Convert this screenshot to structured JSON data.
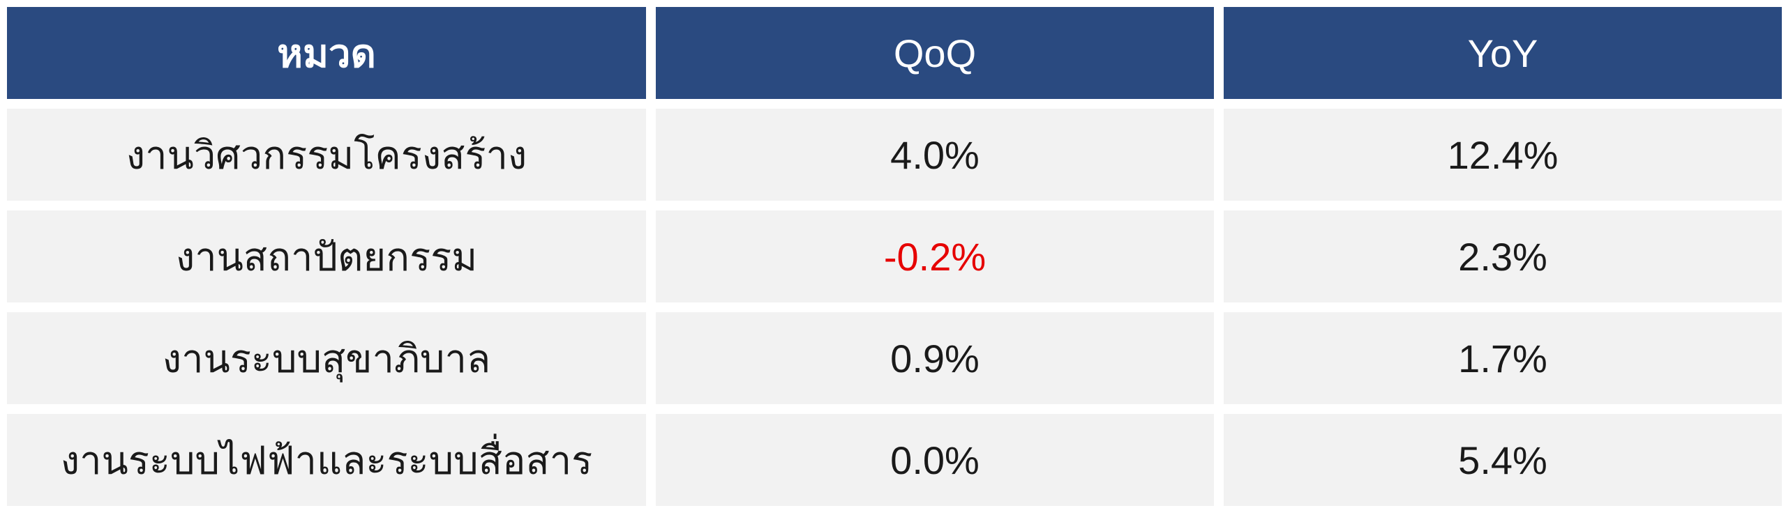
{
  "table": {
    "headers": [
      "หมวด",
      "QoQ",
      "YoY"
    ],
    "rows": [
      {
        "category": "งานวิศวกรรมโครงสร้าง",
        "qoq": "4.0%",
        "yoy": "12.4%"
      },
      {
        "category": "งานสถาปัตยกรรม",
        "qoq": "-0.2%",
        "yoy": "2.3%"
      },
      {
        "category": "งานระบบสุขาภิบาล",
        "qoq": "0.9%",
        "yoy": "1.7%"
      },
      {
        "category": "งานระบบไฟฟ้าและระบบสื่อสาร",
        "qoq": "0.0%",
        "yoy": "5.4%"
      }
    ],
    "colors": {
      "header_bg": "#2a4a80",
      "header_text": "#ffffff",
      "cell_bg": "#f2f2f2",
      "negative": "#e60000"
    }
  }
}
